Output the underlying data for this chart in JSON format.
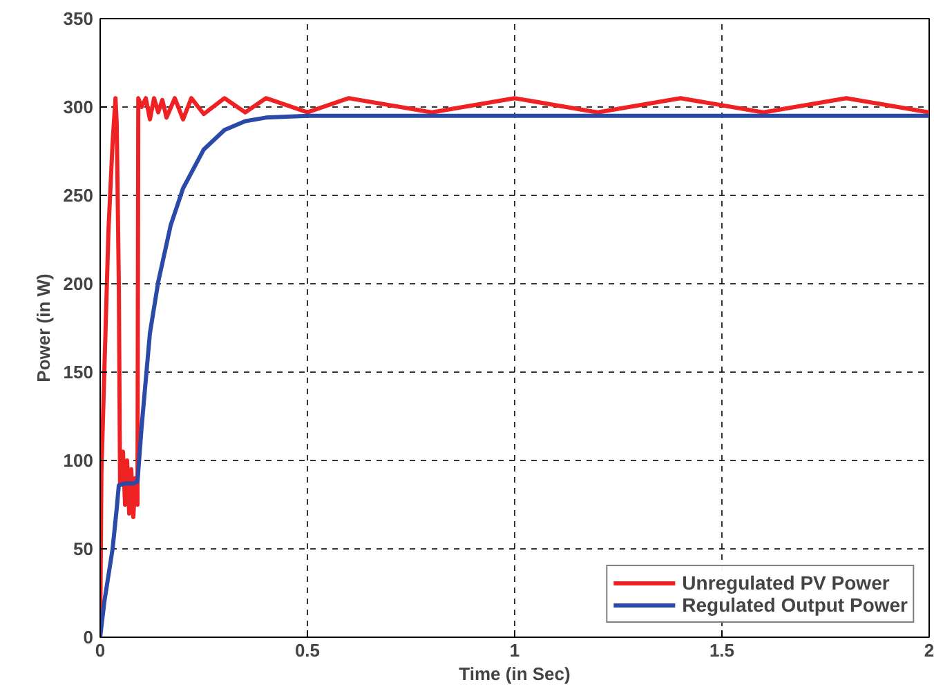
{
  "chart_data": {
    "type": "line",
    "xlabel": "Time (in Sec)",
    "ylabel": "Power (in W)",
    "xlim": [
      0,
      2
    ],
    "ylim": [
      0,
      350
    ],
    "xticks": [
      0,
      0.5,
      1,
      1.5,
      2
    ],
    "yticks": [
      0,
      50,
      100,
      150,
      200,
      250,
      300,
      350
    ],
    "grid": true,
    "legend": "bottom right",
    "line_style": "solid",
    "marker": "none",
    "series": [
      {
        "name": "Unregulated PV Power",
        "color": "#ee2222",
        "x": [
          0,
          0.003,
          0.01,
          0.02,
          0.03,
          0.037,
          0.04,
          0.045,
          0.048,
          0.055,
          0.06,
          0.065,
          0.07,
          0.075,
          0.08,
          0.085,
          0.09,
          0.092,
          0.1,
          0.11,
          0.12,
          0.13,
          0.14,
          0.15,
          0.16,
          0.18,
          0.2,
          0.22,
          0.25,
          0.3,
          0.35,
          0.4,
          0.5,
          0.6,
          0.8,
          1.0,
          1.2,
          1.4,
          1.6,
          1.8,
          2.0
        ],
        "values": [
          0,
          93,
          150,
          230,
          280,
          305,
          290,
          200,
          87,
          105,
          75,
          100,
          70,
          95,
          68,
          90,
          75,
          305,
          300,
          305,
          293,
          305,
          297,
          304,
          294,
          305,
          293,
          305,
          296,
          305,
          297,
          305,
          297,
          305,
          297,
          305,
          297,
          305,
          297,
          305,
          297
        ]
      },
      {
        "name": "Regulated Output Power",
        "color": "#2a4aa8",
        "x": [
          0,
          0.01,
          0.02,
          0.03,
          0.04,
          0.045,
          0.06,
          0.08,
          0.09,
          0.1,
          0.12,
          0.14,
          0.17,
          0.2,
          0.25,
          0.3,
          0.35,
          0.4,
          0.5,
          0.75,
          1.0,
          1.5,
          2.0
        ],
        "values": [
          0,
          20,
          35,
          50,
          73,
          86,
          87,
          87,
          88,
          119,
          172,
          201,
          233,
          254,
          276,
          287,
          292,
          294,
          295,
          295,
          295,
          295,
          295
        ]
      }
    ]
  }
}
